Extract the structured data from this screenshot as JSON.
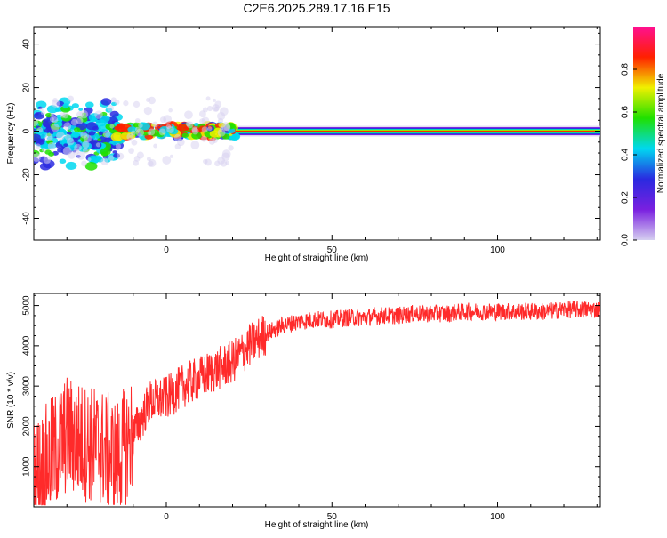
{
  "title": "C2E6.2025.289.17.16.E15",
  "colors": {
    "snr_line": "#ff2a2a",
    "colorbar_stops": [
      "#d6d0f0",
      "#7a20e0",
      "#2a2ae0",
      "#00d8f0",
      "#20e000",
      "#f0f000",
      "#ff2000",
      "#ff1090"
    ]
  },
  "chart_data": [
    {
      "type": "heatmap",
      "xlabel": "Height of straight line (km)",
      "ylabel": "Frequency (Hz)",
      "xlim": [
        -40,
        131
      ],
      "ylim": [
        -50,
        48
      ],
      "x_ticks": [
        0,
        50,
        100
      ],
      "y_ticks": [
        40,
        20,
        0,
        -20,
        -40
      ],
      "colorbar": {
        "label": "Normalized spectral amplitude",
        "ticks": [
          "0.0",
          "0.2",
          "0.4",
          "0.6",
          "0.8"
        ],
        "range": [
          0,
          1
        ]
      },
      "description_bands": [
        {
          "x_start": -40,
          "x_end": -15,
          "freq_spread": 10,
          "amplitude": 0.3
        },
        {
          "x_start": -15,
          "x_end": 20,
          "freq_spread": 3,
          "amplitude": 0.6
        },
        {
          "x_start": 20,
          "x_end": 131,
          "freq_spread": 1,
          "amplitude": 0.9
        }
      ]
    },
    {
      "type": "line",
      "xlabel": "Height of straight line (km)",
      "ylabel": "SNR (10 * v/v)",
      "xlim": [
        -40,
        131
      ],
      "ylim": [
        0,
        5300
      ],
      "x_ticks": [
        0,
        50,
        100
      ],
      "y_ticks": [
        1000,
        2000,
        3000,
        4000,
        5000
      ],
      "series": [
        {
          "x": [
            -40,
            -35,
            -30,
            -25,
            -20,
            -15,
            -10,
            -5,
            0,
            5,
            10,
            15,
            20,
            25,
            30,
            35,
            40,
            45,
            50,
            55,
            60,
            65,
            70,
            75,
            80,
            85,
            90,
            95,
            100,
            105,
            110,
            115,
            120,
            125,
            131
          ],
          "y": [
            700,
            1200,
            1800,
            1600,
            1500,
            1200,
            1800,
            2600,
            2700,
            3000,
            3200,
            3400,
            3600,
            4000,
            4300,
            4500,
            4600,
            4650,
            4650,
            4700,
            4700,
            4750,
            4750,
            4800,
            4800,
            4800,
            4850,
            4850,
            4850,
            4850,
            4850,
            4850,
            4900,
            4900,
            4900
          ]
        }
      ]
    }
  ]
}
